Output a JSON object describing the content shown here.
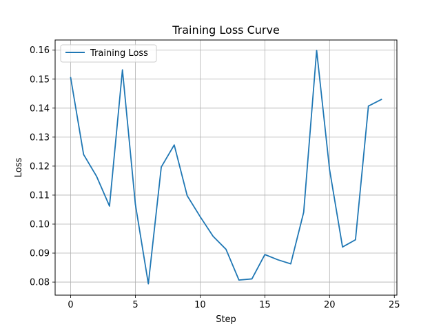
{
  "chart_data": {
    "type": "line",
    "title": "Training Loss Curve",
    "xlabel": "Step",
    "ylabel": "Loss",
    "xlim": [
      -1.2,
      25.2
    ],
    "ylim": [
      0.0755,
      0.1635
    ],
    "xticks": [
      0,
      5,
      10,
      15,
      20,
      25
    ],
    "xtick_labels": [
      "0",
      "5",
      "10",
      "15",
      "20",
      "25"
    ],
    "yticks": [
      0.08,
      0.09,
      0.1,
      0.11,
      0.12,
      0.13,
      0.14,
      0.15,
      0.16
    ],
    "ytick_labels": [
      "0.08",
      "0.09",
      "0.10",
      "0.11",
      "0.12",
      "0.13",
      "0.14",
      "0.15",
      "0.16"
    ],
    "grid": true,
    "legend_position": "top-left",
    "series": [
      {
        "name": "Training Loss",
        "color": "#1f77b4",
        "x": [
          0,
          1,
          2,
          3,
          4,
          5,
          6,
          7,
          8,
          9,
          10,
          11,
          12,
          13,
          14,
          15,
          16,
          17,
          18,
          19,
          20,
          21,
          22,
          23,
          24
        ],
        "y": [
          0.1505,
          0.124,
          0.1165,
          0.1062,
          0.1532,
          0.1068,
          0.0794,
          0.1197,
          0.1273,
          0.1098,
          0.1026,
          0.0958,
          0.0913,
          0.0807,
          0.0811,
          0.0895,
          0.0877,
          0.0863,
          0.1041,
          0.1599,
          0.1188,
          0.0921,
          0.0946,
          0.1407,
          0.143
        ]
      }
    ]
  }
}
